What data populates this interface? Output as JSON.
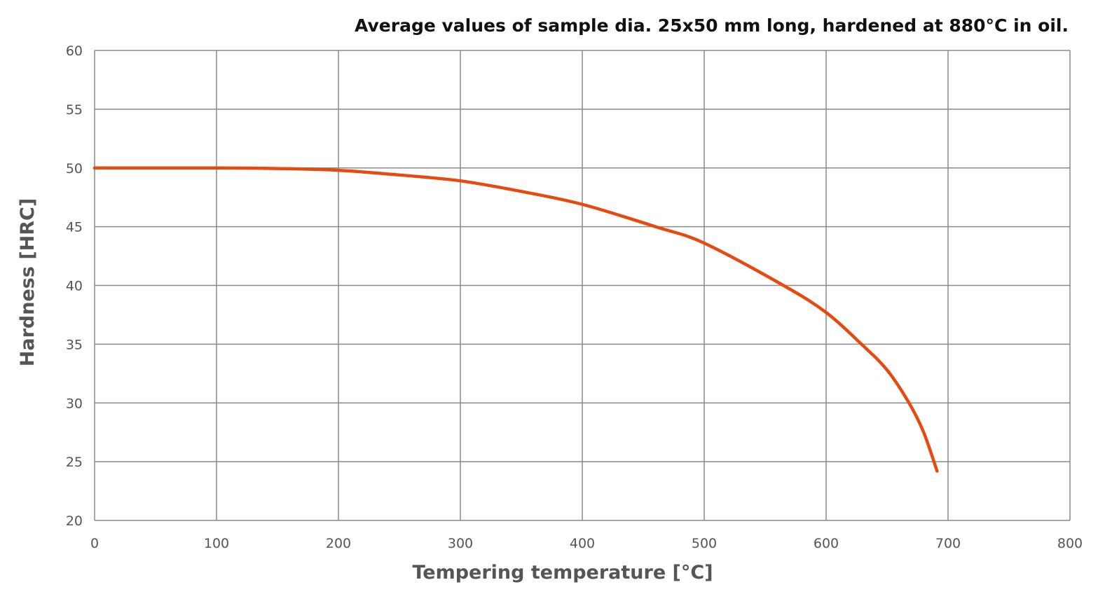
{
  "chart_data": {
    "type": "line",
    "title": "Average values of sample dia. 25x50 mm long, hardened at 880°C in oil.",
    "xlabel": "Tempering temperature [°C]",
    "ylabel": "Hardness [HRC]",
    "xlim": [
      0,
      800
    ],
    "ylim": [
      20,
      60
    ],
    "xticks": [
      "0",
      "100",
      "200",
      "300",
      "400",
      "500",
      "600",
      "700",
      "800"
    ],
    "yticks": [
      "20",
      "25",
      "30",
      "35",
      "40",
      "45",
      "50",
      "55",
      "60"
    ],
    "grid": true,
    "series": [
      {
        "name": "Hardness",
        "color": "#e8490f",
        "x": [
          0,
          100,
          150,
          200,
          250,
          300,
          350,
          400,
          460,
          500,
          565,
          600,
          629,
          650,
          668,
          680,
          691
        ],
        "y": [
          50,
          50,
          49.95,
          49.8,
          49.4,
          48.9,
          48.0,
          46.9,
          45.0,
          43.6,
          40.0,
          37.7,
          35.0,
          32.8,
          30.0,
          27.5,
          24.2
        ]
      }
    ]
  }
}
